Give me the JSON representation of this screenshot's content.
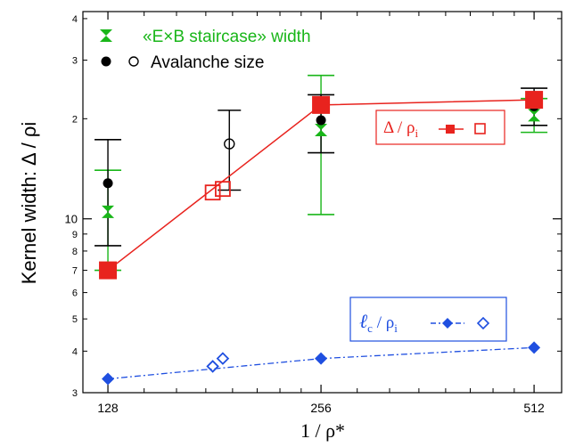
{
  "chart_data": {
    "type": "scatter",
    "title": "",
    "xlabel": "1 / ρ*",
    "ylabel": "Kernel width:  Δ / ρi",
    "xscale": "log2",
    "yscale": "log",
    "xlim": [
      118,
      560
    ],
    "ylim": [
      3,
      42
    ],
    "x_ticks": [
      128,
      256,
      512
    ],
    "x_tick_labels": [
      "128",
      "256",
      "512"
    ],
    "y_major_ticks": [
      10
    ],
    "y_major_labels": [
      "10"
    ],
    "y_minor_ticks": [
      3,
      4,
      5,
      6,
      7,
      8,
      9,
      20,
      30,
      40
    ],
    "y_minor_labels": [
      "3",
      "4",
      "5",
      "6",
      "7",
      "8",
      "9",
      "2",
      "3",
      "4"
    ],
    "grid": false,
    "legend_placement": "top-left",
    "legend": [
      {
        "text": "«E×B staircase» width",
        "color": "#19b619",
        "marker": "hourglass"
      },
      {
        "text": "Avalanche size",
        "color": "#000000",
        "marker": "circle-filled-and-open"
      }
    ],
    "annotations": [
      {
        "base": "Δ / ρ",
        "sub": "i",
        "color": "#e8231e",
        "placement": "right-middle"
      },
      {
        "base": "ℓ",
        "sub_c": "c",
        "rest": " / ρ",
        "sub": "i",
        "color": "#1f4fe0",
        "placement": "bottom-right"
      }
    ],
    "series": [
      {
        "kind": "delta_filled",
        "color": "#e8231e",
        "marker": "square-filled",
        "line": "solid",
        "points": [
          [
            128,
            7.0
          ],
          [
            256,
            22.0
          ],
          [
            512,
            22.8
          ]
        ]
      },
      {
        "kind": "delta_open",
        "color": "#e8231e",
        "marker": "square-open",
        "points": [
          [
            180,
            12.0
          ],
          [
            186,
            12.3
          ]
        ]
      },
      {
        "kind": "lc_filled",
        "color": "#1f4fe0",
        "marker": "diamond-filled",
        "line": "dashdot",
        "points": [
          [
            128,
            3.3
          ],
          [
            256,
            3.8
          ],
          [
            512,
            4.1
          ]
        ]
      },
      {
        "kind": "lc_open",
        "color": "#1f4fe0",
        "marker": "diamond-open",
        "points": [
          [
            180,
            3.6
          ],
          [
            186,
            3.8
          ]
        ]
      },
      {
        "kind": "staircase",
        "color": "#19b619",
        "marker": "hourglass",
        "points": [
          {
            "x": 128,
            "y": 10.5,
            "lo": 7.0,
            "hi": 14.0
          },
          {
            "x": 256,
            "y": 18.5,
            "lo": 10.3,
            "hi": 27.0
          },
          {
            "x": 512,
            "y": 20.5,
            "lo": 18.2,
            "hi": 23.0
          }
        ]
      },
      {
        "kind": "avalanche_filled",
        "color": "#000000",
        "marker": "circle-filled",
        "points": [
          {
            "x": 128,
            "y": 12.8,
            "lo": 8.3,
            "hi": 17.3
          },
          {
            "x": 256,
            "y": 19.8,
            "lo": 15.8,
            "hi": 23.6
          },
          {
            "x": 512,
            "y": 21.8,
            "lo": 19.1,
            "hi": 24.7
          }
        ]
      },
      {
        "kind": "avalanche_open",
        "color": "#000000",
        "marker": "circle-open",
        "points": [
          {
            "x": 190,
            "y": 16.8,
            "lo": 12.2,
            "hi": 21.2
          }
        ]
      }
    ]
  }
}
